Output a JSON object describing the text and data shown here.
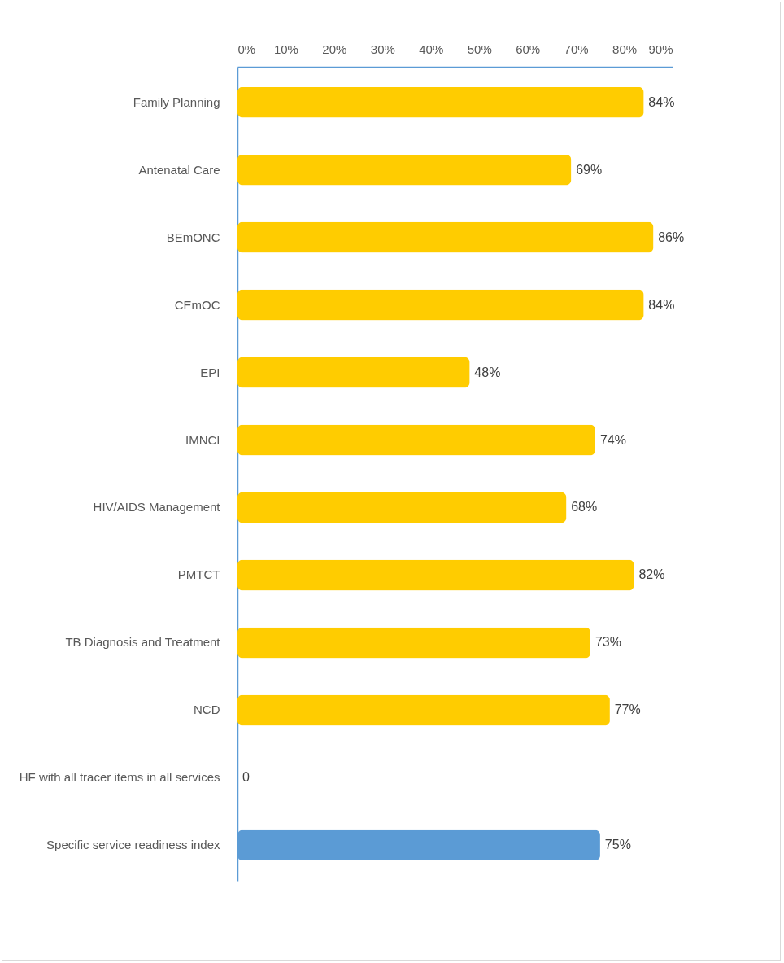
{
  "chart_data": {
    "type": "bar",
    "orientation": "horizontal",
    "categories": [
      "Family Planning",
      "Antenatal Care",
      "BEmONC",
      "CEmOC",
      "EPI",
      "IMNCI",
      "HIV/AIDS Management",
      "PMTCT",
      "TB Diagnosis and Treatment",
      "NCD",
      "HF with all tracer items in all services",
      "Specific service readiness index"
    ],
    "values": [
      84,
      69,
      86,
      84,
      48,
      74,
      68,
      82,
      73,
      77,
      0,
      75
    ],
    "colors": [
      "#ffcc00",
      "#ffcc00",
      "#ffcc00",
      "#ffcc00",
      "#ffcc00",
      "#ffcc00",
      "#ffcc00",
      "#ffcc00",
      "#ffcc00",
      "#ffcc00",
      "#ffcc00",
      "#5b9bd5"
    ],
    "value_labels": [
      "84%",
      "69%",
      "86%",
      "84%",
      "48%",
      "74%",
      "68%",
      "82%",
      "73%",
      "77%",
      "0",
      "75%"
    ],
    "xlim": [
      0,
      90
    ],
    "xticks": [
      {
        "value": 0,
        "label": "0%"
      },
      {
        "value": 10,
        "label": "10%"
      },
      {
        "value": 20,
        "label": "20%"
      },
      {
        "value": 30,
        "label": "30%"
      },
      {
        "value": 40,
        "label": "40%"
      },
      {
        "value": 50,
        "label": "50%"
      },
      {
        "value": 60,
        "label": "60%"
      },
      {
        "value": 70,
        "label": "70%"
      },
      {
        "value": 80,
        "label": "80%"
      },
      {
        "value": 90,
        "label": "90%"
      }
    ],
    "grid": false
  }
}
